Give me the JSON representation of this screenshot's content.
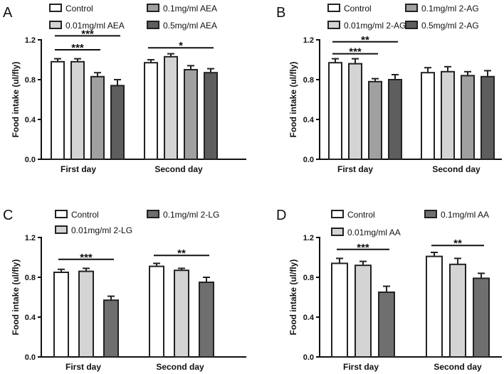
{
  "chart_data": [
    {
      "type": "bar",
      "panel": "A",
      "ylabel": "Food intake (ul/fly)",
      "ylim": [
        0,
        1.2
      ],
      "yticks": [
        0.0,
        0.4,
        0.8,
        1.2
      ],
      "categories": [
        "First day",
        "Second day"
      ],
      "series": [
        {
          "name": "Control",
          "color": "#ffffff",
          "values": [
            0.98,
            0.97
          ],
          "errors": [
            0.03,
            0.03
          ]
        },
        {
          "name": "0.01mg/ml AEA",
          "color": "#d4d4d4",
          "values": [
            0.98,
            1.03
          ],
          "errors": [
            0.03,
            0.03
          ]
        },
        {
          "name": "0.1mg/ml AEA",
          "color": "#a0a0a0",
          "values": [
            0.83,
            0.9
          ],
          "errors": [
            0.04,
            0.04
          ]
        },
        {
          "name": "0.5mg/ml AEA",
          "color": "#5e5e5e",
          "values": [
            0.74,
            0.87
          ],
          "errors": [
            0.06,
            0.04
          ]
        }
      ],
      "significance": [
        {
          "label": "***",
          "group": 0,
          "from": 0,
          "to": 3,
          "y": 1.24
        },
        {
          "label": "***",
          "group": 0,
          "from": 0,
          "to": 2,
          "y": 1.1
        },
        {
          "label": "*",
          "group": 1,
          "from": 0,
          "to": 3,
          "y": 1.12
        }
      ]
    },
    {
      "type": "bar",
      "panel": "B",
      "ylabel": "Food intake (ul/fly)",
      "ylim": [
        0,
        1.2
      ],
      "yticks": [
        0.0,
        0.4,
        0.8,
        1.2
      ],
      "categories": [
        "First day",
        "Second day"
      ],
      "series": [
        {
          "name": "Control",
          "color": "#ffffff",
          "values": [
            0.97,
            0.87
          ],
          "errors": [
            0.04,
            0.05
          ]
        },
        {
          "name": "0.01mg/ml 2-AG",
          "color": "#d4d4d4",
          "values": [
            0.96,
            0.88
          ],
          "errors": [
            0.05,
            0.05
          ]
        },
        {
          "name": "0.1mg/ml 2-AG",
          "color": "#a0a0a0",
          "values": [
            0.78,
            0.84
          ],
          "errors": [
            0.03,
            0.04
          ]
        },
        {
          "name": "0.5mg/ml 2-AG",
          "color": "#5e5e5e",
          "values": [
            0.8,
            0.83
          ],
          "errors": [
            0.05,
            0.06
          ]
        }
      ],
      "significance": [
        {
          "label": "**",
          "group": 0,
          "from": 0,
          "to": 3,
          "y": 1.18
        },
        {
          "label": "***",
          "group": 0,
          "from": 0,
          "to": 2,
          "y": 1.06
        }
      ]
    },
    {
      "type": "bar",
      "panel": "C",
      "ylabel": "Food intake (ul/fly)",
      "ylim": [
        0,
        1.2
      ],
      "yticks": [
        0.0,
        0.4,
        0.8,
        1.2
      ],
      "categories": [
        "First day",
        "Second day"
      ],
      "series": [
        {
          "name": "Control",
          "color": "#ffffff",
          "values": [
            0.85,
            0.91
          ],
          "errors": [
            0.03,
            0.03
          ]
        },
        {
          "name": "0.01mg/ml 2-LG",
          "color": "#d4d4d4",
          "values": [
            0.86,
            0.87
          ],
          "errors": [
            0.03,
            0.02
          ]
        },
        {
          "name": "0.1mg/ml 2-LG",
          "color": "#6f6f6f",
          "values": [
            0.57,
            0.75
          ],
          "errors": [
            0.04,
            0.05
          ]
        }
      ],
      "significance": [
        {
          "label": "***",
          "group": 0,
          "from": 0,
          "to": 2,
          "y": 0.98
        },
        {
          "label": "**",
          "group": 1,
          "from": 0,
          "to": 2,
          "y": 1.02
        }
      ]
    },
    {
      "type": "bar",
      "panel": "D",
      "ylabel": "Food intake (ul/fly)",
      "ylim": [
        0,
        1.2
      ],
      "yticks": [
        0.0,
        0.4,
        0.8,
        1.2
      ],
      "categories": [
        "First day",
        "Second day"
      ],
      "series": [
        {
          "name": "Control",
          "color": "#ffffff",
          "values": [
            0.94,
            1.01
          ],
          "errors": [
            0.05,
            0.04
          ]
        },
        {
          "name": "0.01mg/ml AA",
          "color": "#d4d4d4",
          "values": [
            0.92,
            0.93
          ],
          "errors": [
            0.04,
            0.06
          ]
        },
        {
          "name": "0.1mg/ml AA",
          "color": "#6f6f6f",
          "values": [
            0.65,
            0.79
          ],
          "errors": [
            0.06,
            0.05
          ]
        }
      ],
      "significance": [
        {
          "label": "***",
          "group": 0,
          "from": 0,
          "to": 2,
          "y": 1.08
        },
        {
          "label": "**",
          "group": 1,
          "from": 0,
          "to": 2,
          "y": 1.12
        }
      ]
    }
  ]
}
